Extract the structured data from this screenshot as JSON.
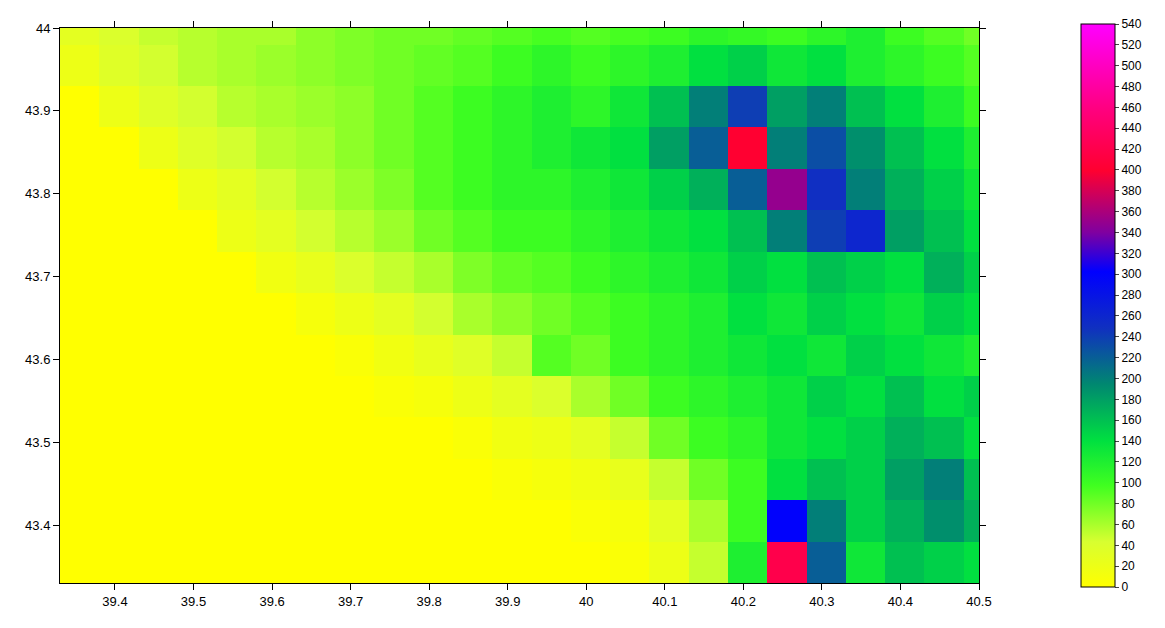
{
  "chart_data": {
    "type": "heatmap",
    "xlim": [
      39.33,
      40.5
    ],
    "ylim": [
      43.33,
      44
    ],
    "xticks": [
      39.4,
      39.5,
      39.6,
      39.7,
      39.8,
      39.9,
      40,
      40.1,
      40.2,
      40.3,
      40.4,
      40.5
    ],
    "yticks": [
      43.4,
      43.5,
      43.6,
      43.7,
      43.8,
      43.9,
      44
    ],
    "x": [
      39.355,
      39.405,
      39.455,
      39.505,
      39.555,
      39.605,
      39.655,
      39.705,
      39.755,
      39.805,
      39.855,
      39.905,
      39.955,
      40.005,
      40.055,
      40.105,
      40.155,
      40.205,
      40.255,
      40.305,
      40.355,
      40.405,
      40.455,
      40.505
    ],
    "y": [
      43.355,
      43.405,
      43.455,
      43.505,
      43.555,
      43.605,
      43.655,
      43.705,
      43.755,
      43.805,
      43.855,
      43.905,
      43.955,
      44.005
    ],
    "z": [
      [
        0,
        0,
        0,
        0,
        0,
        0,
        0,
        0,
        0,
        0,
        0,
        0,
        0,
        0,
        5,
        20,
        50,
        120,
        420,
        220,
        130,
        160,
        150,
        140
      ],
      [
        0,
        0,
        0,
        0,
        0,
        0,
        0,
        0,
        0,
        0,
        0,
        0,
        0,
        5,
        10,
        30,
        60,
        100,
        300,
        200,
        150,
        170,
        190,
        170
      ],
      [
        0,
        0,
        0,
        0,
        0,
        0,
        0,
        0,
        0,
        0,
        0,
        5,
        10,
        15,
        25,
        50,
        80,
        100,
        140,
        160,
        150,
        180,
        200,
        160
      ],
      [
        0,
        0,
        0,
        0,
        0,
        0,
        0,
        0,
        0,
        0,
        5,
        15,
        20,
        30,
        50,
        80,
        100,
        110,
        130,
        140,
        150,
        170,
        160,
        140
      ],
      [
        0,
        0,
        0,
        0,
        0,
        0,
        0,
        0,
        5,
        10,
        20,
        30,
        40,
        60,
        80,
        100,
        110,
        120,
        130,
        150,
        140,
        160,
        140,
        150
      ],
      [
        0,
        0,
        0,
        0,
        0,
        0,
        0,
        5,
        15,
        25,
        35,
        50,
        90,
        80,
        100,
        110,
        120,
        130,
        140,
        130,
        150,
        140,
        130,
        120
      ],
      [
        0,
        0,
        0,
        0,
        0,
        0,
        10,
        20,
        30,
        45,
        60,
        70,
        80,
        90,
        100,
        110,
        120,
        140,
        130,
        150,
        140,
        130,
        150,
        140
      ],
      [
        0,
        0,
        0,
        0,
        0,
        15,
        25,
        40,
        50,
        60,
        75,
        85,
        90,
        100,
        110,
        120,
        130,
        150,
        140,
        160,
        150,
        140,
        170,
        150
      ],
      [
        0,
        0,
        0,
        0,
        20,
        30,
        45,
        55,
        65,
        80,
        90,
        100,
        100,
        110,
        120,
        130,
        140,
        160,
        200,
        240,
        260,
        180,
        160,
        140
      ],
      [
        0,
        0,
        0,
        20,
        30,
        45,
        55,
        65,
        75,
        90,
        100,
        110,
        110,
        120,
        130,
        150,
        170,
        220,
        350,
        250,
        200,
        170,
        150,
        130
      ],
      [
        0,
        0,
        20,
        35,
        45,
        55,
        60,
        70,
        80,
        90,
        100,
        110,
        120,
        130,
        140,
        180,
        220,
        400,
        200,
        230,
        190,
        160,
        140,
        120
      ],
      [
        0,
        20,
        35,
        45,
        55,
        60,
        65,
        70,
        80,
        90,
        100,
        110,
        120,
        110,
        130,
        160,
        200,
        240,
        180,
        200,
        160,
        140,
        120,
        100
      ],
      [
        20,
        35,
        45,
        55,
        60,
        65,
        70,
        75,
        80,
        85,
        90,
        100,
        110,
        100,
        110,
        120,
        140,
        150,
        130,
        140,
        120,
        110,
        100,
        90
      ],
      [
        30,
        40,
        50,
        55,
        60,
        60,
        70,
        75,
        80,
        80,
        85,
        90,
        95,
        90,
        95,
        100,
        110,
        105,
        100,
        110,
        120,
        100,
        90,
        80
      ]
    ],
    "colorbar_range": [
      0,
      540
    ],
    "colorbar_ticks": [
      0,
      20,
      40,
      60,
      80,
      100,
      120,
      140,
      160,
      180,
      200,
      220,
      240,
      260,
      280,
      300,
      320,
      340,
      360,
      380,
      400,
      420,
      440,
      460,
      480,
      500,
      520,
      540
    ]
  }
}
